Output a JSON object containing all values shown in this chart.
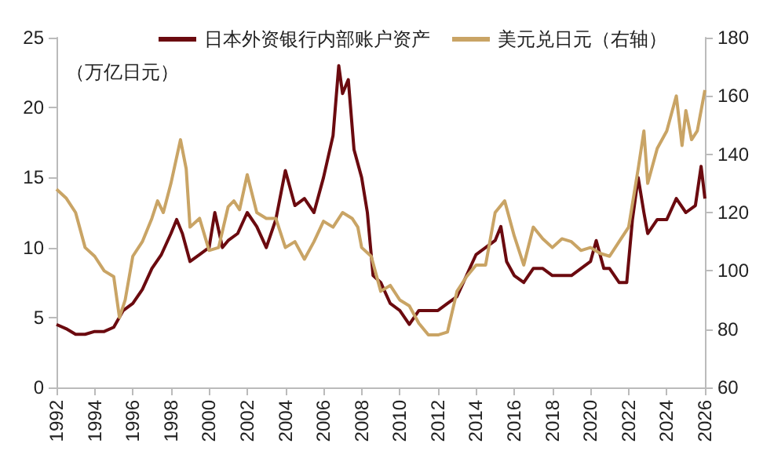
{
  "chart_data": {
    "type": "line",
    "ylabel": "（万亿日元）",
    "x": [
      1992,
      1992.5,
      1993,
      1993.5,
      1994,
      1994.5,
      1995,
      1995.5,
      1996,
      1996.5,
      1997,
      1997.5,
      1998,
      1998.3,
      1998.6,
      1999,
      1999.5,
      2000,
      2000.3,
      2000.7,
      2001,
      2001.5,
      2002,
      2002.5,
      2003,
      2003.5,
      2004,
      2004.5,
      2005,
      2005.5,
      2006,
      2006.5,
      2006.8,
      2007,
      2007.3,
      2007.6,
      2008,
      2008.3,
      2008.6,
      2009,
      2009.5,
      2010,
      2010.5,
      2011,
      2011.5,
      2012,
      2012.5,
      2013,
      2013.5,
      2014,
      2014.5,
      2015,
      2015.3,
      2015.6,
      2016,
      2016.5,
      2017,
      2017.5,
      2018,
      2018.5,
      2019,
      2019.5,
      2020,
      2020.3,
      2020.7,
      2021,
      2021.5,
      2021.9,
      2022.2,
      2022.5,
      2022.8,
      2023,
      2023.5,
      2024,
      2024.5,
      2025,
      2025.5,
      2025.8,
      2026
    ],
    "xlim": [
      1992,
      2026
    ],
    "xticks": [
      1992,
      1994,
      1996,
      1998,
      2000,
      2002,
      2004,
      2006,
      2008,
      2010,
      2012,
      2014,
      2016,
      2018,
      2020,
      2022,
      2024,
      2026
    ],
    "ylim": [
      0,
      25
    ],
    "yticks": [
      0,
      5,
      10,
      15,
      20,
      25
    ],
    "y2lim": [
      60,
      180
    ],
    "y2ticks": [
      60,
      80,
      100,
      120,
      140,
      160,
      180
    ],
    "legend": "top",
    "grid": false,
    "marker": "none",
    "line_style": "solid",
    "series": [
      {
        "name": "日本外资银行内部账户资产",
        "color": "#6b0a0f",
        "values": [
          4.5,
          4.2,
          3.8,
          3.8,
          4.0,
          4.0,
          4.3,
          5.5,
          6.0,
          7,
          8.5,
          9.5,
          11,
          12,
          11,
          9,
          9.5,
          10,
          12.5,
          10,
          10.5,
          11,
          12.5,
          11.5,
          10,
          12,
          15.5,
          13,
          13.5,
          12.5,
          15,
          18,
          23,
          21,
          22,
          17,
          15,
          12.5,
          8,
          7.5,
          6,
          5.5,
          4.5,
          5.5,
          5.5,
          5.5,
          6,
          6.5,
          8,
          9.5,
          10,
          10.5,
          11.5,
          9,
          8,
          7.5,
          8.5,
          8.5,
          8,
          8,
          8,
          8.5,
          9,
          10.5,
          8.5,
          8.5,
          7.5,
          7.5,
          12,
          15,
          12.5,
          11,
          12,
          12,
          13.5,
          12.5,
          13,
          15.8,
          13.5
        ]
      },
      {
        "name": "美元兑日元（右轴）",
        "color": "#c9a465",
        "axis": "y2",
        "x": [
          1992,
          1992.5,
          1993,
          1993.5,
          1994,
          1994.5,
          1995,
          1995.3,
          1995.6,
          1996,
          1996.5,
          1997,
          1997.3,
          1997.6,
          1998,
          1998.5,
          1998.8,
          1999,
          1999.5,
          2000,
          2000.5,
          2001,
          2001.3,
          2001.6,
          2002,
          2002.5,
          2003,
          2003.5,
          2004,
          2004.5,
          2005,
          2005.5,
          2006,
          2006.5,
          2007,
          2007.5,
          2007.8,
          2008,
          2008.5,
          2009,
          2009.5,
          2010,
          2010.5,
          2011,
          2011.5,
          2012,
          2012.5,
          2013,
          2013.5,
          2014,
          2014.5,
          2015,
          2015.5,
          2016,
          2016.5,
          2017,
          2017.5,
          2018,
          2018.5,
          2019,
          2019.5,
          2020,
          2020.5,
          2021,
          2021.5,
          2022,
          2022.5,
          2022.8,
          2023,
          2023.5,
          2024,
          2024.5,
          2024.8,
          2025,
          2025.3,
          2025.6,
          2026
        ],
        "values": [
          128,
          125,
          120,
          108,
          105,
          100,
          98,
          84,
          90,
          105,
          110,
          118,
          124,
          120,
          130,
          145,
          135,
          115,
          118,
          107,
          108,
          122,
          124,
          121,
          133,
          120,
          118,
          118,
          108,
          110,
          104,
          110,
          117,
          115,
          120,
          118,
          115,
          108,
          105,
          93,
          95,
          90,
          88,
          82,
          78,
          78,
          79,
          93,
          98,
          102,
          102,
          120,
          124,
          112,
          102,
          115,
          111,
          108,
          111,
          110,
          107,
          108,
          106,
          105,
          110,
          115,
          135,
          148,
          130,
          142,
          148,
          160,
          143,
          155,
          145,
          148,
          162
        ]
      }
    ]
  }
}
